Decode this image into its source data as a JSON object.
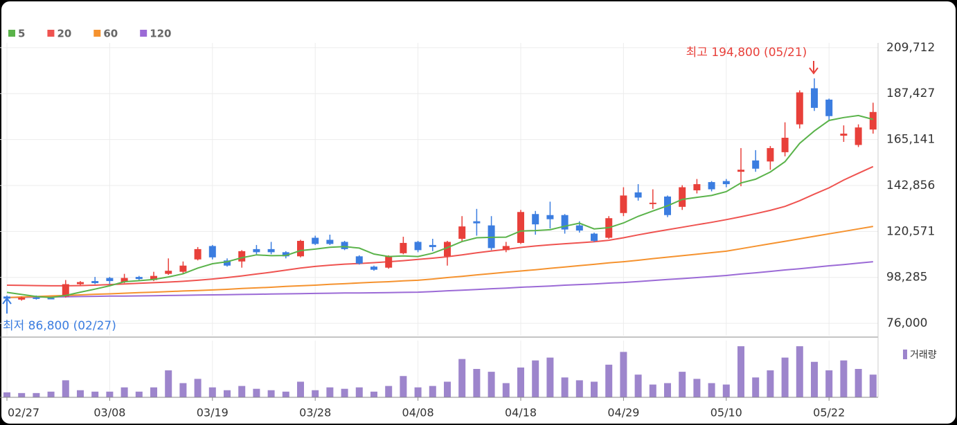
{
  "chart_data": {
    "type": "candlestick",
    "categories": [
      "02/27",
      null,
      null,
      null,
      null,
      null,
      null,
      "03/08",
      null,
      null,
      null,
      null,
      null,
      null,
      "03/19",
      null,
      null,
      null,
      null,
      null,
      null,
      "03/28",
      null,
      null,
      null,
      null,
      null,
      null,
      "04/08",
      null,
      null,
      null,
      null,
      null,
      null,
      "04/18",
      null,
      null,
      null,
      null,
      null,
      null,
      "04/29",
      null,
      null,
      null,
      null,
      null,
      null,
      "05/10",
      null,
      null,
      null,
      null,
      null,
      null,
      "05/22",
      null,
      null,
      null
    ],
    "open": [
      89000,
      87500,
      88500,
      88300,
      89000,
      95000,
      96500,
      98000,
      96000,
      98500,
      97000,
      100000,
      101000,
      107000,
      113500,
      106500,
      106000,
      112000,
      112000,
      110500,
      108500,
      117500,
      116500,
      115500,
      108500,
      103500,
      103000,
      110000,
      115500,
      114000,
      108500,
      117000,
      125500,
      123500,
      111500,
      115000,
      129000,
      128500,
      128500,
      123500,
      119500,
      117500,
      129500,
      139500,
      134000,
      137500,
      132500,
      140500,
      144500,
      145000,
      149500,
      155000,
      154500,
      159000,
      172500,
      190000,
      184500,
      167000,
      162500,
      170000
    ],
    "high": [
      89500,
      89000,
      89500,
      88600,
      97000,
      96500,
      98500,
      98500,
      100000,
      99000,
      101000,
      107500,
      106000,
      113000,
      114000,
      107500,
      111500,
      114000,
      115500,
      111000,
      116500,
      118500,
      119000,
      116000,
      109000,
      104000,
      109000,
      118000,
      116000,
      117000,
      116000,
      128000,
      131500,
      128000,
      115500,
      131000,
      130500,
      135000,
      129000,
      125500,
      120000,
      128000,
      142000,
      143500,
      141000,
      138000,
      143000,
      146000,
      145000,
      146000,
      161000,
      160000,
      162000,
      173500,
      189000,
      194800,
      185000,
      172000,
      172500,
      183000
    ],
    "low": [
      86800,
      87000,
      87500,
      87800,
      88500,
      94500,
      95000,
      95000,
      95500,
      96500,
      96500,
      99500,
      100000,
      106500,
      107000,
      103500,
      103000,
      109500,
      109500,
      107500,
      108000,
      114000,
      114000,
      111500,
      104500,
      101500,
      102500,
      109500,
      110500,
      111000,
      104000,
      115500,
      118500,
      111500,
      110500,
      114500,
      119000,
      122000,
      119500,
      120000,
      115500,
      117000,
      128000,
      135500,
      131500,
      127500,
      131000,
      139000,
      140000,
      142000,
      142500,
      149500,
      150500,
      157000,
      170500,
      179000,
      174000,
      164000,
      161500,
      168000
    ],
    "close": [
      88000,
      88500,
      88000,
      88000,
      95000,
      96000,
      95500,
      96500,
      98000,
      97500,
      99000,
      101500,
      104000,
      112000,
      108000,
      104000,
      111000,
      110500,
      110500,
      108500,
      116000,
      114500,
      114500,
      112000,
      105000,
      102000,
      108500,
      115000,
      111500,
      113000,
      115500,
      123000,
      124500,
      112500,
      113500,
      130000,
      124000,
      126500,
      121500,
      121000,
      116000,
      127000,
      138000,
      137000,
      134500,
      128500,
      142000,
      143500,
      141000,
      143500,
      150500,
      151000,
      161000,
      166000,
      188000,
      180500,
      176500,
      168000,
      171000,
      178500
    ],
    "up_color": "#e8403a",
    "down_color": "#3b7de0",
    "series": [
      {
        "name": "5",
        "color": "#5ab34a",
        "values": [
          91000,
          90000,
          89000,
          88500,
          89500,
          91100,
          92600,
          94200,
          96200,
          96700,
          97300,
          98500,
          100000,
          102800,
          104900,
          105900,
          107800,
          109200,
          108800,
          108900,
          111300,
          112000,
          112900,
          113200,
          112500,
          109600,
          108400,
          108700,
          108400,
          110000,
          112700,
          115700,
          117500,
          117700,
          117800,
          120800,
          121000,
          121400,
          123100,
          124600,
          121800,
          122400,
          124700,
          127900,
          130500,
          133000,
          136100,
          137100,
          138000,
          139900,
          144100,
          145900,
          149400,
          154400,
          163300,
          169300,
          174400,
          175800,
          176800,
          174900
        ]
      },
      {
        "name": "20",
        "color": "#ef5350",
        "values": [
          94500,
          94400,
          94300,
          94200,
          94200,
          94300,
          94500,
          94800,
          95100,
          95400,
          95700,
          96000,
          96400,
          96900,
          97500,
          98200,
          99000,
          99900,
          100800,
          101800,
          102800,
          103600,
          104200,
          104700,
          105000,
          105400,
          105900,
          106400,
          107000,
          107600,
          108300,
          109200,
          110200,
          111100,
          111900,
          112800,
          113500,
          114100,
          114600,
          115100,
          115600,
          116300,
          117500,
          118900,
          120200,
          121400,
          122600,
          123800,
          125000,
          126300,
          127700,
          129200,
          130800,
          132700,
          135500,
          138700,
          141700,
          145500,
          148800,
          152000
        ]
      },
      {
        "name": "60",
        "color": "#f5922e",
        "values": [
          88500,
          88800,
          89000,
          89300,
          89500,
          89800,
          90100,
          90300,
          90600,
          90900,
          91100,
          91400,
          91700,
          91900,
          92200,
          92500,
          92900,
          93200,
          93500,
          93900,
          94200,
          94500,
          94900,
          95200,
          95600,
          95900,
          96200,
          96600,
          96900,
          97500,
          98200,
          98800,
          99500,
          100100,
          100800,
          101400,
          102000,
          102700,
          103300,
          104000,
          104600,
          105300,
          105900,
          106600,
          107400,
          108100,
          108800,
          109500,
          110300,
          111000,
          112200,
          113400,
          114600,
          115800,
          117000,
          118200,
          119400,
          120600,
          121800,
          123000
        ]
      },
      {
        "name": "120",
        "color": "#9b6ad6",
        "values": [
          88500,
          88600,
          88700,
          88800,
          88900,
          89000,
          89100,
          89200,
          89200,
          89300,
          89400,
          89500,
          89600,
          89700,
          89800,
          89900,
          90000,
          90100,
          90200,
          90300,
          90400,
          90500,
          90600,
          90700,
          90700,
          90800,
          90900,
          91000,
          91100,
          91400,
          91800,
          92100,
          92400,
          92800,
          93100,
          93500,
          93800,
          94100,
          94500,
          94800,
          95100,
          95500,
          95800,
          96300,
          96800,
          97300,
          97700,
          98200,
          98700,
          99200,
          99900,
          100500,
          101200,
          101900,
          102500,
          103200,
          103900,
          104500,
          105200,
          105900
        ]
      }
    ],
    "volume": {
      "name": "거래량",
      "color": "#9d85cc",
      "ylim": [
        0,
        80
      ],
      "values": [
        7,
        6,
        6,
        8,
        24,
        10,
        8,
        8,
        14,
        8,
        14,
        38,
        20,
        26,
        14,
        10,
        16,
        12,
        10,
        8,
        22,
        10,
        14,
        12,
        14,
        8,
        16,
        30,
        14,
        16,
        22,
        54,
        40,
        36,
        20,
        42,
        52,
        56,
        28,
        24,
        22,
        46,
        64,
        32,
        18,
        20,
        36,
        26,
        20,
        18,
        72,
        28,
        38,
        56,
        72,
        50,
        38,
        52,
        40,
        32
      ]
    },
    "ylim": [
      70000,
      212000
    ],
    "yticks": [
      {
        "value": 76000,
        "label": "76,000"
      },
      {
        "value": 98285,
        "label": "98,285"
      },
      {
        "value": 120571,
        "label": "120,571"
      },
      {
        "value": 142856,
        "label": "142,856"
      },
      {
        "value": 165141,
        "label": "165,141"
      },
      {
        "value": 187427,
        "label": "187,427"
      },
      {
        "value": 209712,
        "label": "209,712"
      }
    ],
    "grid": true,
    "high_label": "최고 194,800 (05/21)",
    "low_label": "최저 86,800 (02/27)"
  }
}
